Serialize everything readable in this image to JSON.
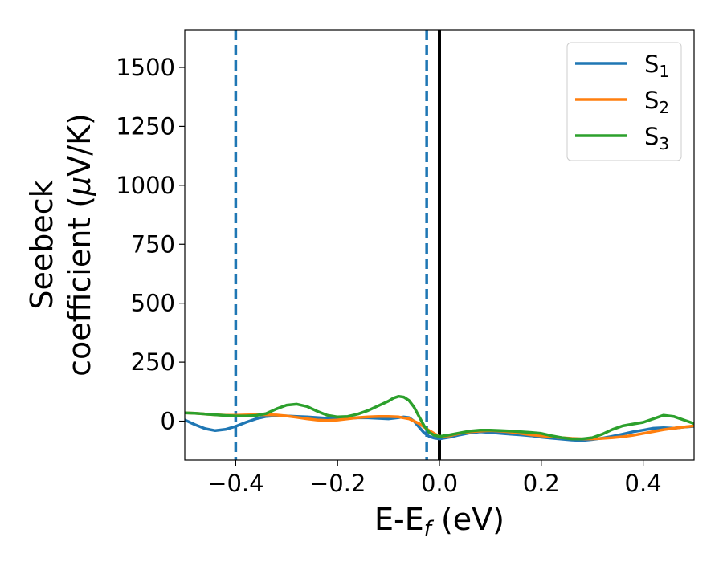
{
  "chart_data": {
    "type": "line",
    "xlabel_main": "E-E",
    "xlabel_sub": "f",
    "xlabel_unit": " (eV)",
    "ylabel_line1": "Seebeck",
    "ylabel_line2_main": "coefficient  (",
    "ylabel_line2_mu": "μ",
    "ylabel_line2_unit": "V/K)",
    "xlim": [
      -0.5,
      0.5
    ],
    "ylim": [
      -165,
      1660
    ],
    "xticks": [
      -0.4,
      -0.2,
      0.0,
      0.2,
      0.4
    ],
    "xtick_labels": [
      "−0.4",
      "−0.2",
      "0.0",
      "0.2",
      "0.4"
    ],
    "yticks": [
      0,
      250,
      500,
      750,
      1000,
      1250,
      1500
    ],
    "ytick_labels": [
      "0",
      "250",
      "500",
      "750",
      "1000",
      "1250",
      "1500"
    ],
    "grid": false,
    "legend_position": "top-right",
    "vlines": [
      {
        "x": -0.4,
        "style": "dashed",
        "color": "#1f77b4"
      },
      {
        "x": -0.025,
        "style": "dashed",
        "color": "#1f77b4"
      },
      {
        "x": 0.0,
        "style": "solid",
        "color": "#000000"
      }
    ],
    "series": [
      {
        "name": "S",
        "subscript": "1",
        "color": "#1f77b4",
        "x": [
          -0.5,
          -0.48,
          -0.46,
          -0.44,
          -0.42,
          -0.4,
          -0.38,
          -0.36,
          -0.34,
          -0.32,
          -0.3,
          -0.28,
          -0.26,
          -0.24,
          -0.22,
          -0.2,
          -0.18,
          -0.16,
          -0.14,
          -0.12,
          -0.1,
          -0.08,
          -0.07,
          -0.06,
          -0.05,
          -0.04,
          -0.03,
          -0.02,
          -0.01,
          0.0,
          0.02,
          0.04,
          0.06,
          0.08,
          0.1,
          0.12,
          0.14,
          0.16,
          0.18,
          0.2,
          0.22,
          0.24,
          0.26,
          0.28,
          0.3,
          0.32,
          0.34,
          0.36,
          0.38,
          0.4,
          0.42,
          0.44,
          0.46,
          0.48,
          0.5
        ],
        "y": [
          5,
          -15,
          -32,
          -40,
          -35,
          -22,
          -5,
          10,
          20,
          23,
          22,
          20,
          18,
          15,
          12,
          10,
          12,
          14,
          14,
          12,
          10,
          15,
          18,
          15,
          0,
          -25,
          -50,
          -65,
          -72,
          -75,
          -68,
          -58,
          -50,
          -45,
          -48,
          -52,
          -55,
          -58,
          -62,
          -68,
          -72,
          -76,
          -80,
          -82,
          -78,
          -72,
          -64,
          -55,
          -45,
          -38,
          -30,
          -28,
          -30,
          -25,
          -22
        ]
      },
      {
        "name": "S",
        "subscript": "2",
        "color": "#ff7f0e",
        "x": [
          -0.5,
          -0.48,
          -0.46,
          -0.44,
          -0.42,
          -0.4,
          -0.38,
          -0.36,
          -0.34,
          -0.32,
          -0.3,
          -0.28,
          -0.26,
          -0.24,
          -0.22,
          -0.2,
          -0.18,
          -0.16,
          -0.14,
          -0.12,
          -0.1,
          -0.08,
          -0.06,
          -0.04,
          -0.02,
          0.0,
          0.02,
          0.04,
          0.06,
          0.08,
          0.1,
          0.12,
          0.14,
          0.16,
          0.18,
          0.2,
          0.22,
          0.24,
          0.26,
          0.28,
          0.3,
          0.32,
          0.34,
          0.36,
          0.38,
          0.4,
          0.42,
          0.44,
          0.46,
          0.48,
          0.5
        ],
        "y": [
          35,
          33,
          30,
          27,
          25,
          25,
          26,
          27,
          27,
          26,
          22,
          16,
          10,
          5,
          3,
          5,
          10,
          15,
          18,
          20,
          20,
          18,
          10,
          -10,
          -40,
          -65,
          -62,
          -52,
          -45,
          -42,
          -40,
          -42,
          -46,
          -52,
          -58,
          -62,
          -66,
          -70,
          -73,
          -75,
          -75,
          -73,
          -70,
          -66,
          -60,
          -52,
          -44,
          -36,
          -30,
          -25,
          -20
        ]
      },
      {
        "name": "S",
        "subscript": "3",
        "color": "#2ca02c",
        "x": [
          -0.5,
          -0.48,
          -0.46,
          -0.44,
          -0.42,
          -0.4,
          -0.38,
          -0.36,
          -0.34,
          -0.32,
          -0.3,
          -0.28,
          -0.26,
          -0.24,
          -0.22,
          -0.2,
          -0.18,
          -0.16,
          -0.14,
          -0.12,
          -0.1,
          -0.09,
          -0.08,
          -0.07,
          -0.06,
          -0.05,
          -0.04,
          -0.03,
          -0.02,
          -0.01,
          0.0,
          0.02,
          0.04,
          0.06,
          0.08,
          0.1,
          0.12,
          0.14,
          0.16,
          0.18,
          0.2,
          0.22,
          0.24,
          0.26,
          0.28,
          0.3,
          0.32,
          0.34,
          0.36,
          0.38,
          0.4,
          0.42,
          0.44,
          0.46,
          0.48,
          0.5
        ],
        "y": [
          35,
          33,
          30,
          27,
          24,
          22,
          22,
          24,
          32,
          52,
          68,
          72,
          62,
          42,
          25,
          18,
          20,
          30,
          45,
          65,
          85,
          98,
          105,
          102,
          88,
          60,
          20,
          -20,
          -48,
          -60,
          -65,
          -58,
          -50,
          -42,
          -38,
          -38,
          -40,
          -42,
          -45,
          -48,
          -52,
          -62,
          -70,
          -75,
          -75,
          -70,
          -55,
          -35,
          -20,
          -12,
          -5,
          10,
          25,
          20,
          5,
          -10
        ]
      }
    ]
  }
}
